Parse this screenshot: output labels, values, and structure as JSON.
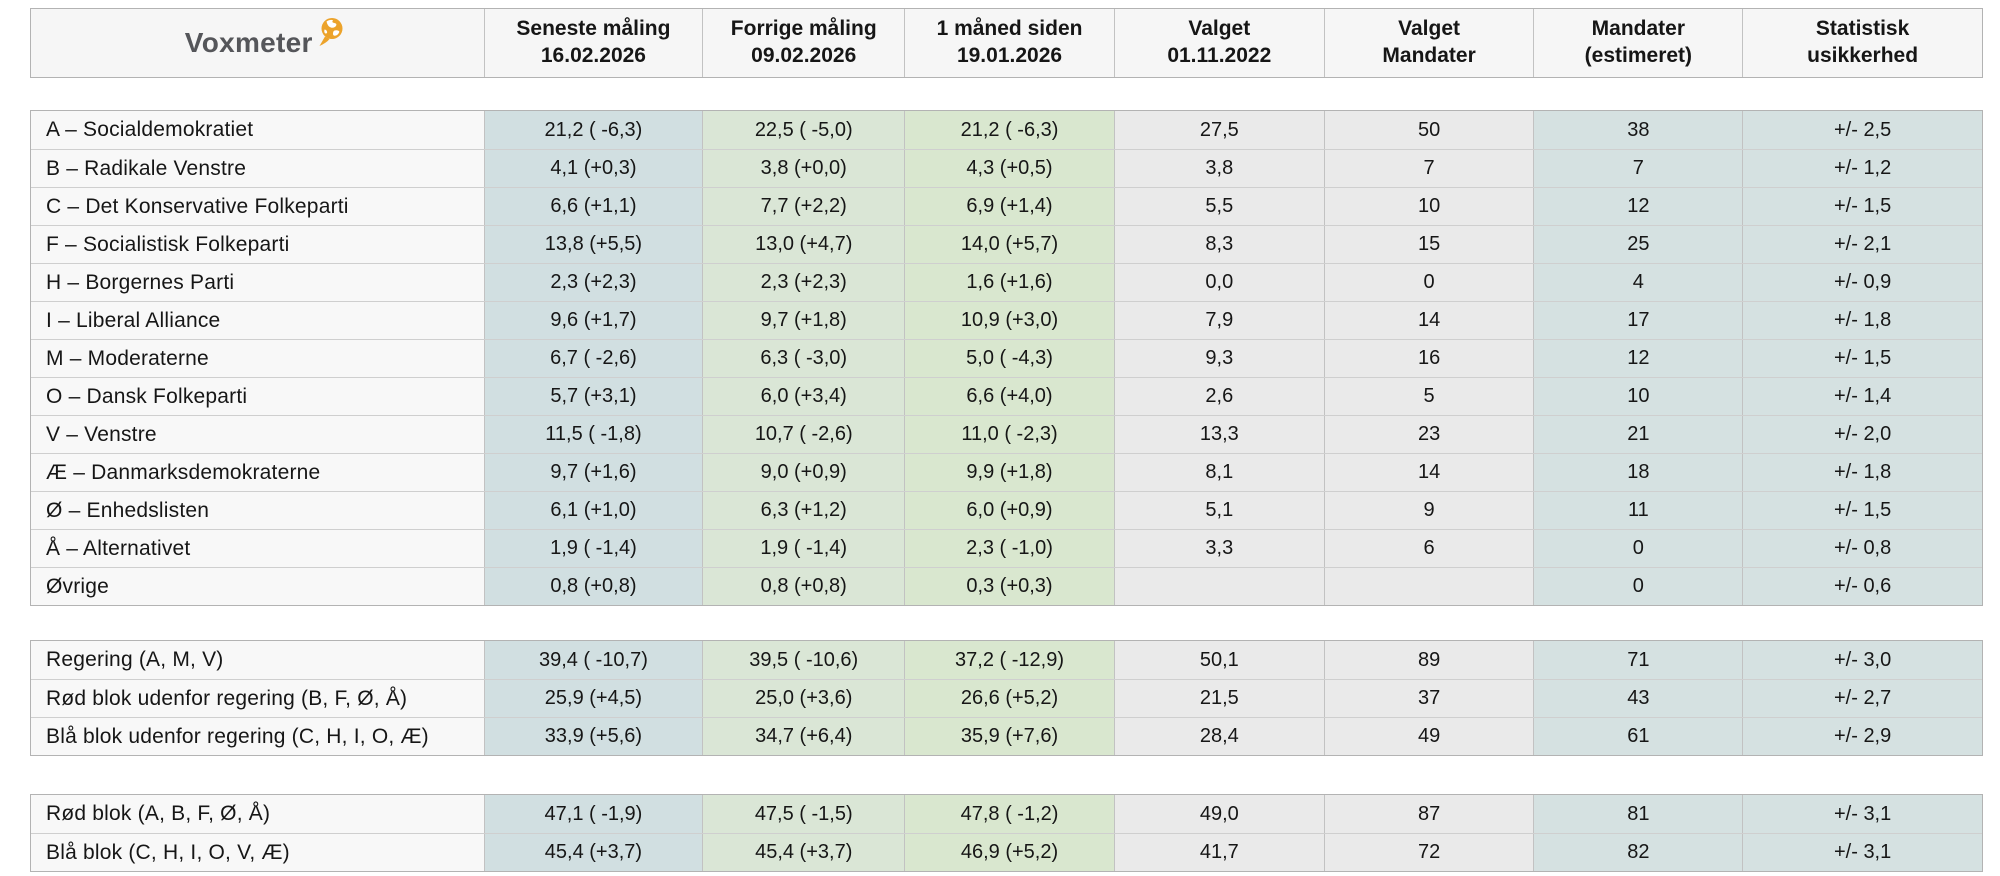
{
  "brand": {
    "name": "Voxmeter",
    "logo_icon": "globe-speech-bubble-icon",
    "logo_text_color": "#55565a",
    "globe_color": "#eca32b"
  },
  "header": {
    "columns": [
      "Seneste måling\n16.02.2026",
      "Forrige  måling\n09.02.2026",
      "1 måned siden\n19.01.2026",
      "Valget\n01.11.2022",
      "Valget\nMandater",
      "Mandater\n(estimeret)",
      "Statistisk\nusikkerhed"
    ]
  },
  "colors": {
    "seneste_bg": "#d1dfe1",
    "forrige_bg": "#dae6d6",
    "maaned_bg": "#d9e7cf",
    "valget_bg": "#eaeaea",
    "mandater_estimeret_bg": "#d5e1e1",
    "usikkerhed_bg": "#d5e1e1",
    "header_bg": "#f6f6f6",
    "party_col_bg": "#f8f8f8"
  },
  "table": {
    "field_order": [
      "seneste",
      "forrige",
      "maaned",
      "valget",
      "valget_mandater",
      "mandater_estimeret",
      "usikkerhed"
    ],
    "groups": [
      {
        "name": "parties",
        "rows": [
          {
            "label": "A – Socialdemokratiet",
            "seneste": "21,2 ( -6,3)",
            "forrige": "22,5 ( -5,0)",
            "maaned": "21,2 ( -6,3)",
            "valget": "27,5",
            "valget_mandater": "50",
            "mandater_estimeret": "38",
            "usikkerhed": "+/- 2,5"
          },
          {
            "label": "B – Radikale Venstre",
            "seneste": "4,1 (+0,3)",
            "forrige": "3,8 (+0,0)",
            "maaned": "4,3 (+0,5)",
            "valget": "3,8",
            "valget_mandater": "7",
            "mandater_estimeret": "7",
            "usikkerhed": "+/- 1,2"
          },
          {
            "label": "C – Det Konservative Folkeparti",
            "seneste": "6,6 (+1,1)",
            "forrige": "7,7 (+2,2)",
            "maaned": "6,9 (+1,4)",
            "valget": "5,5",
            "valget_mandater": "10",
            "mandater_estimeret": "12",
            "usikkerhed": "+/- 1,5"
          },
          {
            "label": "F – Socialistisk Folkeparti",
            "seneste": "13,8 (+5,5)",
            "forrige": "13,0 (+4,7)",
            "maaned": "14,0 (+5,7)",
            "valget": "8,3",
            "valget_mandater": "15",
            "mandater_estimeret": "25",
            "usikkerhed": "+/- 2,1"
          },
          {
            "label": "H – Borgernes Parti",
            "seneste": "2,3 (+2,3)",
            "forrige": "2,3 (+2,3)",
            "maaned": "1,6 (+1,6)",
            "valget": "0,0",
            "valget_mandater": "0",
            "mandater_estimeret": "4",
            "usikkerhed": "+/- 0,9"
          },
          {
            "label": "I – Liberal Alliance",
            "seneste": "9,6 (+1,7)",
            "forrige": "9,7 (+1,8)",
            "maaned": "10,9 (+3,0)",
            "valget": "7,9",
            "valget_mandater": "14",
            "mandater_estimeret": "17",
            "usikkerhed": "+/- 1,8"
          },
          {
            "label": "M – Moderaterne",
            "seneste": "6,7 ( -2,6)",
            "forrige": "6,3 ( -3,0)",
            "maaned": "5,0 ( -4,3)",
            "valget": "9,3",
            "valget_mandater": "16",
            "mandater_estimeret": "12",
            "usikkerhed": "+/- 1,5"
          },
          {
            "label": "O – Dansk Folkeparti",
            "seneste": "5,7 (+3,1)",
            "forrige": "6,0 (+3,4)",
            "maaned": "6,6 (+4,0)",
            "valget": "2,6",
            "valget_mandater": "5",
            "mandater_estimeret": "10",
            "usikkerhed": "+/- 1,4"
          },
          {
            "label": "V – Venstre",
            "seneste": "11,5 ( -1,8)",
            "forrige": "10,7 ( -2,6)",
            "maaned": "11,0 ( -2,3)",
            "valget": "13,3",
            "valget_mandater": "23",
            "mandater_estimeret": "21",
            "usikkerhed": "+/- 2,0"
          },
          {
            "label": "Æ – Danmarksdemokraterne",
            "seneste": "9,7 (+1,6)",
            "forrige": "9,0 (+0,9)",
            "maaned": "9,9 (+1,8)",
            "valget": "8,1",
            "valget_mandater": "14",
            "mandater_estimeret": "18",
            "usikkerhed": "+/- 1,8"
          },
          {
            "label": "Ø – Enhedslisten",
            "seneste": "6,1 (+1,0)",
            "forrige": "6,3 (+1,2)",
            "maaned": "6,0 (+0,9)",
            "valget": "5,1",
            "valget_mandater": "9",
            "mandater_estimeret": "11",
            "usikkerhed": "+/- 1,5"
          },
          {
            "label": "Å – Alternativet",
            "seneste": "1,9 ( -1,4)",
            "forrige": "1,9 ( -1,4)",
            "maaned": "2,3 ( -1,0)",
            "valget": "3,3",
            "valget_mandater": "6",
            "mandater_estimeret": "0",
            "usikkerhed": "+/- 0,8"
          },
          {
            "label": "Øvrige",
            "seneste": "0,8 (+0,8)",
            "forrige": "0,8 (+0,8)",
            "maaned": "0,3 (+0,3)",
            "valget": "",
            "valget_mandater": "",
            "mandater_estimeret": "0",
            "usikkerhed": "+/- 0,6"
          }
        ]
      },
      {
        "name": "government",
        "rows": [
          {
            "label": "Regering (A, M, V)",
            "seneste": "39,4 ( -10,7)",
            "forrige": "39,5 ( -10,6)",
            "maaned": "37,2 ( -12,9)",
            "valget": "50,1",
            "valget_mandater": "89",
            "mandater_estimeret": "71",
            "usikkerhed": "+/- 3,0"
          },
          {
            "label": "Rød blok udenfor regering (B, F, Ø, Å)",
            "seneste": "25,9 (+4,5)",
            "forrige": "25,0 (+3,6)",
            "maaned": "26,6 (+5,2)",
            "valget": "21,5",
            "valget_mandater": "37",
            "mandater_estimeret": "43",
            "usikkerhed": "+/- 2,7"
          },
          {
            "label": "Blå blok udenfor regering (C, H, I, O, Æ)",
            "seneste": "33,9 (+5,6)",
            "forrige": "34,7 (+6,4)",
            "maaned": "35,9 (+7,6)",
            "valget": "28,4",
            "valget_mandater": "49",
            "mandater_estimeret": "61",
            "usikkerhed": "+/- 2,9"
          }
        ]
      },
      {
        "name": "blocs",
        "rows": [
          {
            "label": "Rød blok (A, B, F, Ø, Å)",
            "seneste": "47,1 ( -1,9)",
            "forrige": "47,5 ( -1,5)",
            "maaned": "47,8 ( -1,2)",
            "valget": "49,0",
            "valget_mandater": "87",
            "mandater_estimeret": "81",
            "usikkerhed": "+/- 3,1"
          },
          {
            "label": "Blå blok (C, H, I, O, V, Æ)",
            "seneste": "45,4 (+3,7)",
            "forrige": "45,4 (+3,7)",
            "maaned": "46,9 (+5,2)",
            "valget": "41,7",
            "valget_mandater": "72",
            "mandater_estimeret": "82",
            "usikkerhed": "+/- 3,1"
          }
        ]
      }
    ]
  }
}
